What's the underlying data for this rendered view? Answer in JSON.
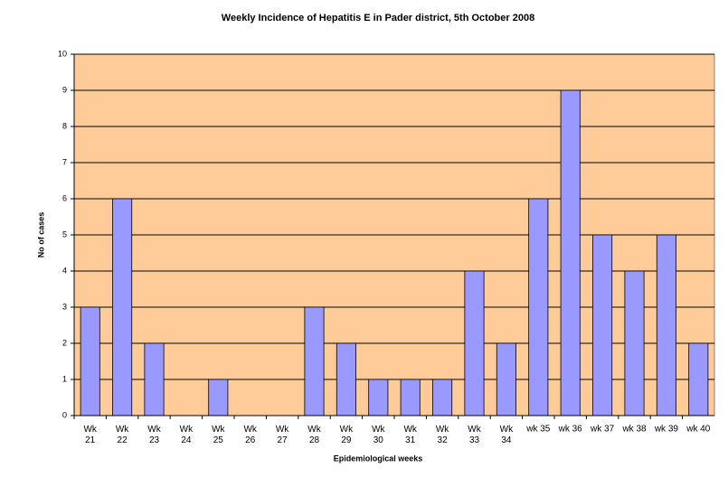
{
  "chart_data": {
    "type": "bar",
    "title": "Weekly Incidence of Hepatitis E in Pader district, 5th October 2008",
    "x_label": "Epidemiological weeks",
    "y_label": "No of cases",
    "categories": [
      "Wk\n21",
      "Wk\n22",
      "Wk\n23",
      "Wk\n24",
      "Wk\n25",
      "Wk\n26",
      "Wk\n27",
      "Wk\n28",
      "Wk\n29",
      "Wk\n30",
      "Wk\n31",
      "Wk\n32",
      "Wk\n33",
      "Wk\n34",
      "wk 35",
      "wk 36",
      "wk 37",
      "wk 38",
      "wk 39",
      "wk 40"
    ],
    "values": [
      3,
      6,
      2,
      0,
      1,
      0,
      0,
      3,
      2,
      1,
      1,
      1,
      4,
      2,
      6,
      9,
      5,
      4,
      5,
      2
    ],
    "color": "#9999ff",
    "background": "#ffcc99",
    "ylim": [
      0,
      10
    ],
    "yticks": [
      0,
      1,
      2,
      3,
      4,
      5,
      6,
      7,
      8,
      9,
      10
    ],
    "grid": true
  }
}
